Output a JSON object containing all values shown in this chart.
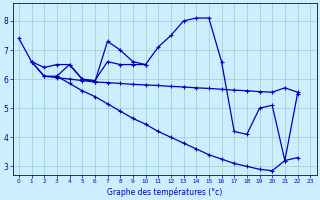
{
  "xlabel": "Graphe des températures (°c)",
  "background_color": "#cceeff",
  "line_color": "#0000bb",
  "grid_color": "#99cccc",
  "xlim": [
    -0.5,
    23.5
  ],
  "ylim": [
    2.7,
    8.6
  ],
  "xticks": [
    0,
    1,
    2,
    3,
    4,
    5,
    6,
    7,
    8,
    9,
    10,
    11,
    12,
    13,
    14,
    15,
    16,
    17,
    18,
    19,
    20,
    21,
    22,
    23
  ],
  "yticks": [
    3,
    4,
    5,
    6,
    7,
    8
  ],
  "curve1_x": [
    0,
    1,
    2,
    3,
    4,
    5,
    6,
    7,
    8,
    9,
    10,
    11,
    12,
    13,
    14,
    15,
    16,
    17,
    18,
    19,
    20,
    21,
    22
  ],
  "curve1_y": [
    7.4,
    6.6,
    6.1,
    6.1,
    6.5,
    6.0,
    5.9,
    7.3,
    7.0,
    6.6,
    6.5,
    7.1,
    7.5,
    8.0,
    8.1,
    8.1,
    6.6,
    4.2,
    4.1,
    5.0,
    5.1,
    3.2,
    5.5
  ],
  "curve2_x": [
    1,
    2,
    3,
    4,
    5,
    6,
    7,
    8,
    9,
    10
  ],
  "curve2_y": [
    6.6,
    6.4,
    6.5,
    6.5,
    6.0,
    5.95,
    6.6,
    6.5,
    6.5,
    6.5
  ],
  "curve3_x": [
    1,
    2,
    3,
    4,
    5,
    6,
    7,
    8,
    9,
    10,
    11,
    12,
    13,
    14,
    15,
    16,
    17,
    18,
    19,
    20,
    21,
    22
  ],
  "curve3_y": [
    6.6,
    6.1,
    6.05,
    6.0,
    5.95,
    5.9,
    5.88,
    5.85,
    5.82,
    5.8,
    5.78,
    5.75,
    5.73,
    5.7,
    5.68,
    5.65,
    5.62,
    5.6,
    5.57,
    5.55,
    5.7,
    5.55
  ],
  "curve4_x": [
    3,
    4,
    5,
    6,
    7,
    8,
    9,
    10,
    11,
    12,
    13,
    14,
    15,
    16,
    17,
    18,
    19,
    20,
    21,
    22
  ],
  "curve4_y": [
    6.1,
    5.85,
    5.6,
    5.4,
    5.15,
    4.9,
    4.65,
    4.45,
    4.2,
    4.0,
    3.8,
    3.6,
    3.4,
    3.25,
    3.1,
    3.0,
    2.9,
    2.85,
    3.2,
    3.3
  ]
}
